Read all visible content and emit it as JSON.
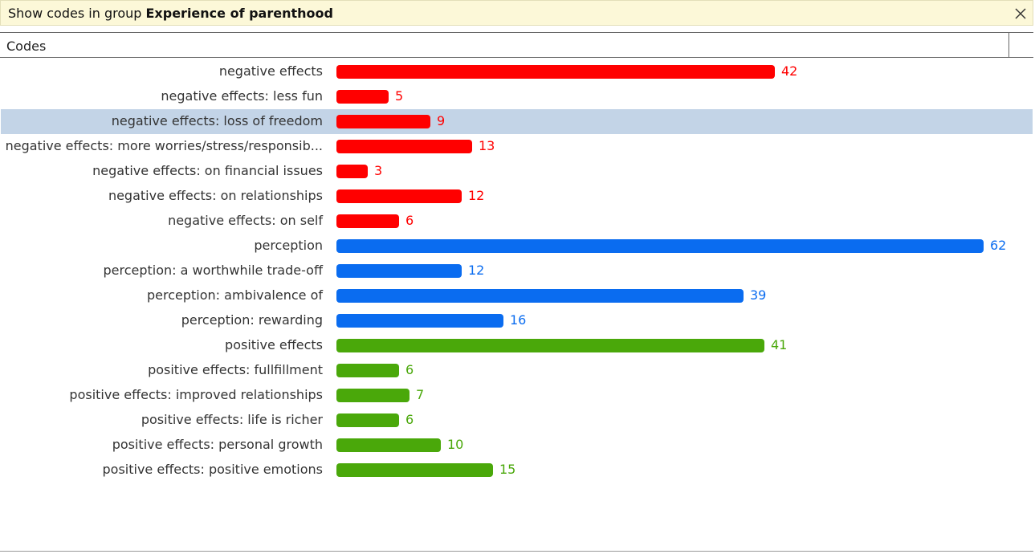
{
  "banner": {
    "prefix": "Show codes in group ",
    "group_name": "Experience of parenthood"
  },
  "header": {
    "column_label": "Codes"
  },
  "colors": {
    "negative": "#ff0000",
    "perception": "#0a6cf0",
    "positive": "#4aa80a",
    "selected_row": "#c3d4e7"
  },
  "icons": {
    "close": "close-icon"
  },
  "max_value": 62,
  "rows": [
    {
      "label": "negative effects",
      "count": 42,
      "group": "negative"
    },
    {
      "label": "negative effects: less fun",
      "count": 5,
      "group": "negative"
    },
    {
      "label": "negative effects: loss of freedom",
      "count": 9,
      "group": "negative",
      "selected": true
    },
    {
      "label": "negative effects: more worries/stress/responsib...",
      "count": 13,
      "group": "negative"
    },
    {
      "label": "negative effects: on financial issues",
      "count": 3,
      "group": "negative"
    },
    {
      "label": "negative effects: on relationships",
      "count": 12,
      "group": "negative"
    },
    {
      "label": "negative effects: on self",
      "count": 6,
      "group": "negative"
    },
    {
      "label": "perception",
      "count": 62,
      "group": "perception"
    },
    {
      "label": "perception: a worthwhile trade-off",
      "count": 12,
      "group": "perception"
    },
    {
      "label": "perception: ambivalence of",
      "count": 39,
      "group": "perception"
    },
    {
      "label": "perception: rewarding",
      "count": 16,
      "group": "perception"
    },
    {
      "label": "positive effects",
      "count": 41,
      "group": "positive"
    },
    {
      "label": "positive effects: fullfillment",
      "count": 6,
      "group": "positive"
    },
    {
      "label": "positive effects: improved relationships",
      "count": 7,
      "group": "positive"
    },
    {
      "label": "positive effects: life is richer",
      "count": 6,
      "group": "positive"
    },
    {
      "label": "positive effects: personal growth",
      "count": 10,
      "group": "positive"
    },
    {
      "label": "positive effects: positive emotions",
      "count": 15,
      "group": "positive"
    }
  ]
}
